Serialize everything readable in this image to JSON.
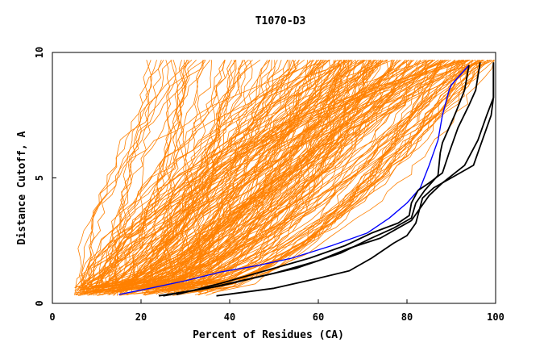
{
  "chart_data": {
    "type": "line",
    "title": "T1070-D3",
    "xlabel": "Percent of Residues (CA)",
    "ylabel": "Distance Cutoff, A",
    "xlim": [
      0,
      100
    ],
    "ylim": [
      0,
      10
    ],
    "x_ticks": [
      "0",
      "20",
      "40",
      "60",
      "80",
      "100"
    ],
    "y_ticks": [
      "0",
      "5",
      "10"
    ],
    "grid": false,
    "colors": {
      "background_models": "#ff8000",
      "highlight": "#0000ff",
      "reference": "#000000"
    },
    "series": [
      {
        "color": "#0000ff",
        "points": [
          [
            15,
            0.35
          ],
          [
            22,
            0.6
          ],
          [
            30,
            0.9
          ],
          [
            38,
            1.25
          ],
          [
            46,
            1.5
          ],
          [
            54,
            1.8
          ],
          [
            63,
            2.3
          ],
          [
            71,
            2.8
          ],
          [
            76,
            3.4
          ],
          [
            80,
            4.0
          ],
          [
            83,
            4.6
          ],
          [
            85,
            5.5
          ],
          [
            87,
            6.5
          ],
          [
            88,
            7.5
          ],
          [
            89.5,
            8.5
          ],
          [
            90,
            8.7
          ],
          [
            92,
            9.1
          ],
          [
            94,
            9.5
          ]
        ]
      },
      {
        "color": "#000000",
        "points": [
          [
            24,
            0.3
          ],
          [
            35,
            0.6
          ],
          [
            45,
            1.0
          ],
          [
            55,
            1.4
          ],
          [
            65,
            2.0
          ],
          [
            72,
            2.6
          ],
          [
            77,
            3.0
          ],
          [
            81,
            3.4
          ],
          [
            82,
            4.0
          ],
          [
            84,
            4.5
          ],
          [
            87,
            5.1
          ],
          [
            87.5,
            6.0
          ],
          [
            88,
            6.4
          ],
          [
            91,
            7.6
          ],
          [
            93,
            8.5
          ],
          [
            94,
            9.5
          ]
        ]
      },
      {
        "color": "#000000",
        "points": [
          [
            25,
            0.3
          ],
          [
            38,
            0.7
          ],
          [
            50,
            1.2
          ],
          [
            60,
            1.7
          ],
          [
            67,
            2.2
          ],
          [
            74,
            2.6
          ],
          [
            78,
            3.0
          ],
          [
            81,
            3.3
          ],
          [
            83,
            3.8
          ],
          [
            85,
            4.3
          ],
          [
            88,
            4.8
          ],
          [
            93,
            5.5
          ],
          [
            96,
            6.5
          ],
          [
            98,
            7.5
          ],
          [
            99.5,
            8.2
          ],
          [
            99.5,
            9.6
          ]
        ]
      },
      {
        "color": "#000000",
        "points": [
          [
            37,
            0.3
          ],
          [
            50,
            0.6
          ],
          [
            60,
            1.0
          ],
          [
            67,
            1.3
          ],
          [
            72,
            1.8
          ],
          [
            77,
            2.4
          ],
          [
            80,
            2.7
          ],
          [
            82,
            3.2
          ],
          [
            83.5,
            4.2
          ],
          [
            86,
            4.6
          ],
          [
            90,
            5.0
          ],
          [
            95,
            5.5
          ],
          [
            97,
            6.5
          ],
          [
            99,
            7.5
          ],
          [
            99.5,
            8.2
          ],
          [
            99.5,
            9.6
          ]
        ]
      },
      {
        "color": "#000000",
        "points": [
          [
            28,
            0.35
          ],
          [
            38,
            0.8
          ],
          [
            48,
            1.3
          ],
          [
            58,
            1.8
          ],
          [
            66,
            2.3
          ],
          [
            72,
            2.8
          ],
          [
            78,
            3.2
          ],
          [
            80.5,
            3.5
          ],
          [
            81,
            4.0
          ],
          [
            82.5,
            4.5
          ],
          [
            85,
            4.8
          ],
          [
            88,
            5.2
          ],
          [
            89.5,
            6.0
          ],
          [
            91.5,
            7.0
          ],
          [
            94,
            7.9
          ],
          [
            95.5,
            8.5
          ],
          [
            96.5,
            9.6
          ]
        ]
      }
    ]
  }
}
